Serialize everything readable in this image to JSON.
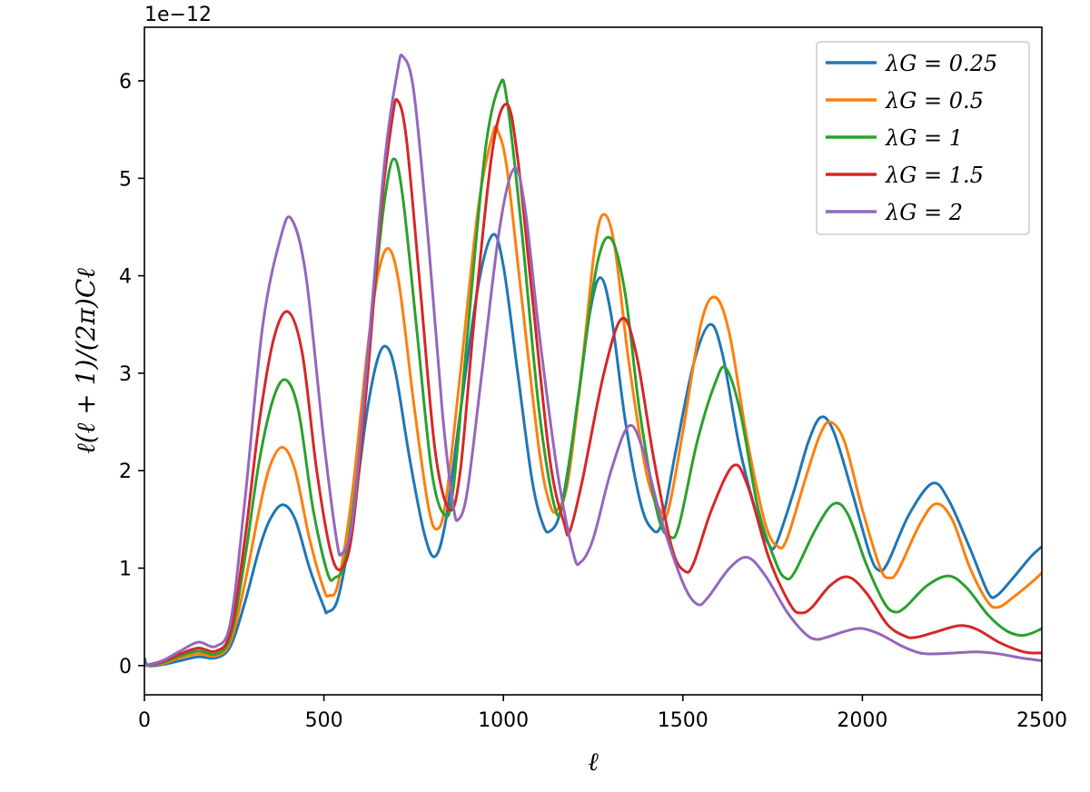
{
  "chart_data": {
    "type": "line",
    "xlabel": "ℓ",
    "ylabel": "ℓ(ℓ + 1)/(2π)Cℓ",
    "offset_label": "1e−12",
    "xlim": [
      0,
      2500
    ],
    "ylim": [
      -0.3,
      6.55
    ],
    "xticks": [
      0,
      500,
      1000,
      1500,
      2000,
      2500
    ],
    "yticks": [
      0,
      1,
      2,
      3,
      4,
      5,
      6
    ],
    "grid": false,
    "legend_position": "top-right",
    "series": [
      {
        "name": "λG = 0.25",
        "color": "#1f77b4",
        "points": [
          [
            0,
            0.08
          ],
          [
            10,
            0
          ],
          [
            50,
            0.01
          ],
          [
            100,
            0.05
          ],
          [
            150,
            0.09
          ],
          [
            200,
            0.08
          ],
          [
            240,
            0.2
          ],
          [
            280,
            0.65
          ],
          [
            320,
            1.2
          ],
          [
            350,
            1.5
          ],
          [
            385,
            1.65
          ],
          [
            420,
            1.5
          ],
          [
            460,
            1.0
          ],
          [
            500,
            0.6
          ],
          [
            510,
            0.55
          ],
          [
            540,
            0.7
          ],
          [
            580,
            1.5
          ],
          [
            620,
            2.6
          ],
          [
            650,
            3.15
          ],
          [
            675,
            3.27
          ],
          [
            700,
            3.0
          ],
          [
            740,
            2.1
          ],
          [
            780,
            1.35
          ],
          [
            810,
            1.12
          ],
          [
            840,
            1.5
          ],
          [
            880,
            2.6
          ],
          [
            930,
            3.9
          ],
          [
            970,
            4.42
          ],
          [
            1000,
            4.1
          ],
          [
            1040,
            3.0
          ],
          [
            1080,
            1.9
          ],
          [
            1110,
            1.45
          ],
          [
            1130,
            1.38
          ],
          [
            1160,
            1.6
          ],
          [
            1200,
            2.5
          ],
          [
            1240,
            3.6
          ],
          [
            1270,
            3.98
          ],
          [
            1300,
            3.6
          ],
          [
            1340,
            2.5
          ],
          [
            1380,
            1.7
          ],
          [
            1410,
            1.42
          ],
          [
            1440,
            1.45
          ],
          [
            1480,
            2.2
          ],
          [
            1530,
            3.1
          ],
          [
            1575,
            3.5
          ],
          [
            1610,
            3.2
          ],
          [
            1660,
            2.2
          ],
          [
            1710,
            1.5
          ],
          [
            1740,
            1.24
          ],
          [
            1760,
            1.25
          ],
          [
            1810,
            1.8
          ],
          [
            1850,
            2.3
          ],
          [
            1885,
            2.55
          ],
          [
            1920,
            2.4
          ],
          [
            1970,
            1.8
          ],
          [
            2020,
            1.15
          ],
          [
            2045,
            0.98
          ],
          [
            2070,
            1.05
          ],
          [
            2130,
            1.55
          ],
          [
            2195,
            1.87
          ],
          [
            2240,
            1.7
          ],
          [
            2300,
            1.2
          ],
          [
            2350,
            0.75
          ],
          [
            2375,
            0.72
          ],
          [
            2420,
            0.9
          ],
          [
            2470,
            1.12
          ],
          [
            2500,
            1.22
          ]
        ]
      },
      {
        "name": "λG = 0.5",
        "color": "#ff7f0e",
        "points": [
          [
            0,
            0
          ],
          [
            50,
            0.02
          ],
          [
            100,
            0.08
          ],
          [
            150,
            0.12
          ],
          [
            200,
            0.1
          ],
          [
            240,
            0.25
          ],
          [
            280,
            0.85
          ],
          [
            320,
            1.6
          ],
          [
            350,
            2.05
          ],
          [
            385,
            2.24
          ],
          [
            420,
            2.0
          ],
          [
            460,
            1.3
          ],
          [
            500,
            0.78
          ],
          [
            515,
            0.72
          ],
          [
            540,
            0.85
          ],
          [
            580,
            1.8
          ],
          [
            620,
            3.2
          ],
          [
            650,
            4.0
          ],
          [
            680,
            4.28
          ],
          [
            710,
            3.9
          ],
          [
            750,
            2.7
          ],
          [
            790,
            1.65
          ],
          [
            815,
            1.4
          ],
          [
            840,
            1.7
          ],
          [
            880,
            3.0
          ],
          [
            930,
            4.7
          ],
          [
            970,
            5.45
          ],
          [
            985,
            5.48
          ],
          [
            1010,
            5.1
          ],
          [
            1050,
            3.8
          ],
          [
            1100,
            2.2
          ],
          [
            1130,
            1.65
          ],
          [
            1150,
            1.6
          ],
          [
            1180,
            1.9
          ],
          [
            1220,
            3.1
          ],
          [
            1255,
            4.3
          ],
          [
            1280,
            4.63
          ],
          [
            1310,
            4.3
          ],
          [
            1350,
            3.1
          ],
          [
            1400,
            1.95
          ],
          [
            1440,
            1.58
          ],
          [
            1460,
            1.6
          ],
          [
            1500,
            2.4
          ],
          [
            1550,
            3.5
          ],
          [
            1590,
            3.78
          ],
          [
            1630,
            3.4
          ],
          [
            1680,
            2.3
          ],
          [
            1730,
            1.45
          ],
          [
            1765,
            1.22
          ],
          [
            1790,
            1.3
          ],
          [
            1840,
            1.9
          ],
          [
            1880,
            2.35
          ],
          [
            1910,
            2.5
          ],
          [
            1950,
            2.3
          ],
          [
            2000,
            1.6
          ],
          [
            2050,
            1.0
          ],
          [
            2075,
            0.9
          ],
          [
            2100,
            0.98
          ],
          [
            2160,
            1.45
          ],
          [
            2205,
            1.66
          ],
          [
            2250,
            1.5
          ],
          [
            2300,
            1.0
          ],
          [
            2350,
            0.65
          ],
          [
            2380,
            0.6
          ],
          [
            2420,
            0.7
          ],
          [
            2470,
            0.85
          ],
          [
            2500,
            0.95
          ]
        ]
      },
      {
        "name": "λG = 1",
        "color": "#2ca02c",
        "points": [
          [
            0,
            0
          ],
          [
            50,
            0.03
          ],
          [
            100,
            0.1
          ],
          [
            150,
            0.15
          ],
          [
            200,
            0.12
          ],
          [
            240,
            0.3
          ],
          [
            280,
            1.1
          ],
          [
            320,
            2.1
          ],
          [
            360,
            2.75
          ],
          [
            395,
            2.93
          ],
          [
            430,
            2.6
          ],
          [
            470,
            1.6
          ],
          [
            510,
            0.95
          ],
          [
            530,
            0.9
          ],
          [
            560,
            1.1
          ],
          [
            600,
            2.2
          ],
          [
            640,
            3.8
          ],
          [
            670,
            4.8
          ],
          [
            695,
            5.2
          ],
          [
            720,
            4.8
          ],
          [
            760,
            3.4
          ],
          [
            800,
            2.0
          ],
          [
            835,
            1.55
          ],
          [
            860,
            1.8
          ],
          [
            900,
            3.4
          ],
          [
            950,
            5.3
          ],
          [
            990,
            5.96
          ],
          [
            1010,
            5.8
          ],
          [
            1050,
            4.5
          ],
          [
            1100,
            2.6
          ],
          [
            1145,
            1.6
          ],
          [
            1170,
            1.75
          ],
          [
            1210,
            2.8
          ],
          [
            1260,
            4.1
          ],
          [
            1300,
            4.38
          ],
          [
            1340,
            3.8
          ],
          [
            1380,
            2.6
          ],
          [
            1430,
            1.55
          ],
          [
            1465,
            1.32
          ],
          [
            1490,
            1.45
          ],
          [
            1540,
            2.3
          ],
          [
            1590,
            2.9
          ],
          [
            1620,
            3.05
          ],
          [
            1660,
            2.6
          ],
          [
            1710,
            1.6
          ],
          [
            1760,
            1.05
          ],
          [
            1785,
            0.9
          ],
          [
            1810,
            0.95
          ],
          [
            1870,
            1.4
          ],
          [
            1920,
            1.66
          ],
          [
            1960,
            1.55
          ],
          [
            2010,
            1.05
          ],
          [
            2060,
            0.65
          ],
          [
            2090,
            0.55
          ],
          [
            2120,
            0.6
          ],
          [
            2180,
            0.82
          ],
          [
            2240,
            0.92
          ],
          [
            2290,
            0.8
          ],
          [
            2350,
            0.52
          ],
          [
            2400,
            0.36
          ],
          [
            2440,
            0.31
          ],
          [
            2470,
            0.33
          ],
          [
            2500,
            0.38
          ]
        ]
      },
      {
        "name": "λG = 1.5",
        "color": "#d62728",
        "points": [
          [
            0,
            0
          ],
          [
            50,
            0.04
          ],
          [
            100,
            0.12
          ],
          [
            150,
            0.18
          ],
          [
            200,
            0.15
          ],
          [
            240,
            0.35
          ],
          [
            280,
            1.3
          ],
          [
            320,
            2.5
          ],
          [
            360,
            3.35
          ],
          [
            400,
            3.63
          ],
          [
            440,
            3.2
          ],
          [
            480,
            2.0
          ],
          [
            520,
            1.15
          ],
          [
            550,
            1.0
          ],
          [
            580,
            1.4
          ],
          [
            620,
            2.9
          ],
          [
            660,
            4.7
          ],
          [
            690,
            5.6
          ],
          [
            705,
            5.8
          ],
          [
            730,
            5.4
          ],
          [
            770,
            3.8
          ],
          [
            810,
            2.2
          ],
          [
            850,
            1.6
          ],
          [
            880,
            2.0
          ],
          [
            920,
            3.6
          ],
          [
            970,
            5.3
          ],
          [
            1010,
            5.76
          ],
          [
            1040,
            5.2
          ],
          [
            1080,
            3.8
          ],
          [
            1130,
            2.1
          ],
          [
            1170,
            1.45
          ],
          [
            1185,
            1.38
          ],
          [
            1220,
            1.9
          ],
          [
            1280,
            3.0
          ],
          [
            1330,
            3.56
          ],
          [
            1370,
            3.2
          ],
          [
            1420,
            2.1
          ],
          [
            1470,
            1.2
          ],
          [
            1505,
            0.97
          ],
          [
            1530,
            1.05
          ],
          [
            1580,
            1.6
          ],
          [
            1640,
            2.05
          ],
          [
            1680,
            1.85
          ],
          [
            1740,
            1.1
          ],
          [
            1800,
            0.62
          ],
          [
            1830,
            0.54
          ],
          [
            1860,
            0.6
          ],
          [
            1910,
            0.82
          ],
          [
            1960,
            0.91
          ],
          [
            2010,
            0.75
          ],
          [
            2070,
            0.42
          ],
          [
            2120,
            0.3
          ],
          [
            2150,
            0.29
          ],
          [
            2200,
            0.34
          ],
          [
            2270,
            0.41
          ],
          [
            2320,
            0.37
          ],
          [
            2380,
            0.24
          ],
          [
            2440,
            0.15
          ],
          [
            2470,
            0.13
          ],
          [
            2500,
            0.13
          ]
        ]
      },
      {
        "name": "λG = 2",
        "color": "#9467bd",
        "points": [
          [
            0,
            0
          ],
          [
            50,
            0.05
          ],
          [
            100,
            0.15
          ],
          [
            150,
            0.24
          ],
          [
            200,
            0.2
          ],
          [
            240,
            0.45
          ],
          [
            280,
            1.7
          ],
          [
            330,
            3.5
          ],
          [
            380,
            4.4
          ],
          [
            410,
            4.58
          ],
          [
            450,
            4.0
          ],
          [
            500,
            2.3
          ],
          [
            535,
            1.3
          ],
          [
            550,
            1.15
          ],
          [
            580,
            1.5
          ],
          [
            620,
            3.1
          ],
          [
            670,
            5.2
          ],
          [
            705,
            6.1
          ],
          [
            720,
            6.25
          ],
          [
            750,
            5.9
          ],
          [
            790,
            4.4
          ],
          [
            830,
            2.6
          ],
          [
            860,
            1.65
          ],
          [
            875,
            1.5
          ],
          [
            900,
            1.8
          ],
          [
            940,
            3.0
          ],
          [
            990,
            4.5
          ],
          [
            1030,
            5.1
          ],
          [
            1060,
            4.7
          ],
          [
            1100,
            3.4
          ],
          [
            1150,
            2.0
          ],
          [
            1195,
            1.15
          ],
          [
            1215,
            1.06
          ],
          [
            1250,
            1.3
          ],
          [
            1300,
            2.0
          ],
          [
            1350,
            2.46
          ],
          [
            1390,
            2.2
          ],
          [
            1440,
            1.5
          ],
          [
            1500,
            0.85
          ],
          [
            1540,
            0.63
          ],
          [
            1570,
            0.7
          ],
          [
            1630,
            1.0
          ],
          [
            1680,
            1.11
          ],
          [
            1730,
            0.92
          ],
          [
            1790,
            0.55
          ],
          [
            1840,
            0.33
          ],
          [
            1870,
            0.27
          ],
          [
            1900,
            0.29
          ],
          [
            1960,
            0.36
          ],
          [
            2000,
            0.38
          ],
          [
            2050,
            0.32
          ],
          [
            2110,
            0.2
          ],
          [
            2160,
            0.13
          ],
          [
            2200,
            0.12
          ],
          [
            2260,
            0.13
          ],
          [
            2320,
            0.14
          ],
          [
            2380,
            0.12
          ],
          [
            2440,
            0.08
          ],
          [
            2500,
            0.05
          ]
        ]
      }
    ]
  }
}
